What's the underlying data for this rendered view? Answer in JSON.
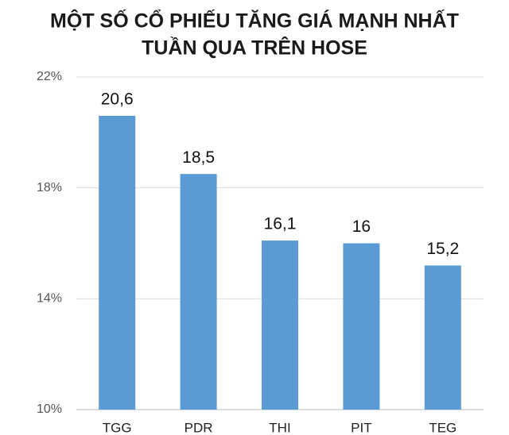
{
  "chart_data": {
    "type": "bar",
    "title": [
      "MỘT SỐ CỔ PHIẾU TĂNG GIÁ MẠNH NHẤT",
      "TUẦN QUA TRÊN HOSE"
    ],
    "categories": [
      "TGG",
      "PDR",
      "THI",
      "PIT",
      "TEG"
    ],
    "values": [
      20.6,
      18.5,
      16.1,
      16,
      15.2
    ],
    "value_labels": [
      "20,6",
      "18,5",
      "16,1",
      "16",
      "15,2"
    ],
    "color": "#5b9bd5",
    "ylim": [
      10,
      22
    ],
    "yticks": [
      {
        "value": 10,
        "label": "10%"
      },
      {
        "value": 14,
        "label": "14%"
      },
      {
        "value": 18,
        "label": "18%"
      },
      {
        "value": 22,
        "label": "22%"
      }
    ],
    "grid": true
  }
}
